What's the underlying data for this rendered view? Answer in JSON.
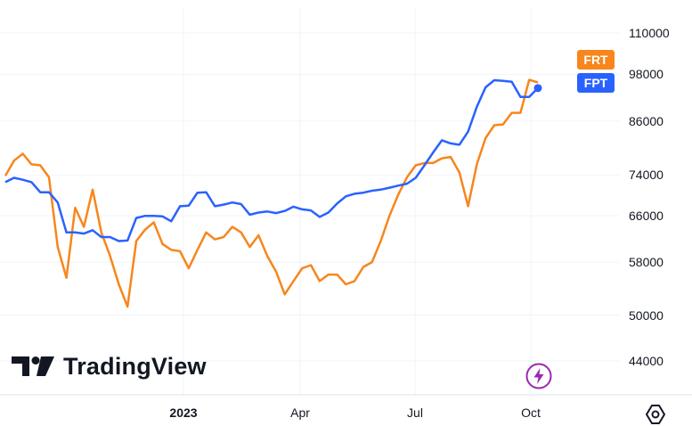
{
  "chart_data": {
    "type": "line",
    "y_ticks": [
      "110000",
      "98000",
      "86000",
      "74000",
      "66000",
      "58000",
      "50000",
      "44000"
    ],
    "x_ticks": [
      {
        "label": "2023",
        "bold": true
      },
      {
        "label": "Apr",
        "bold": false
      },
      {
        "label": "Jul",
        "bold": false
      },
      {
        "label": "Oct",
        "bold": false
      }
    ],
    "scale": "log",
    "ylim": [
      40000,
      110000
    ],
    "grid": true,
    "series": [
      {
        "name": "FRT",
        "color": "#F7861C",
        "values": [
          73800,
          77000,
          78500,
          76200,
          76000,
          73500,
          60500,
          55500,
          67500,
          64000,
          71000,
          63000,
          59000,
          54500,
          51200,
          61500,
          63500,
          64800,
          61000,
          60000,
          59800,
          57000,
          60000,
          63000,
          61800,
          62200,
          64000,
          63000,
          60500,
          62500,
          59000,
          56500,
          53000,
          55000,
          57000,
          57500,
          55000,
          56000,
          56000,
          54500,
          55000,
          57200,
          58000,
          61500,
          66000,
          70000,
          73500,
          76000,
          76500,
          76500,
          77500,
          77800,
          74500,
          67800,
          76200,
          82000,
          85000,
          85200,
          88000,
          88000,
          96500,
          95800
        ]
      },
      {
        "name": "FPT",
        "color": "#2962FF",
        "values": [
          72500,
          73400,
          73000,
          72500,
          70500,
          70500,
          68500,
          63000,
          63000,
          62800,
          63400,
          62200,
          62200,
          61500,
          61600,
          65600,
          66000,
          66000,
          65900,
          65000,
          67800,
          67900,
          70400,
          70500,
          67800,
          68100,
          68500,
          68200,
          66200,
          66600,
          66800,
          66500,
          66900,
          67700,
          67200,
          67000,
          65800,
          66600,
          68300,
          69700,
          70200,
          70400,
          70800,
          71000,
          71400,
          71800,
          72200,
          73400,
          76000,
          78800,
          81500,
          80800,
          80500,
          83500,
          89500,
          94500,
          96400,
          96200,
          96000,
          92000,
          92000,
          94300
        ]
      }
    ]
  },
  "brand": {
    "name": "TradingView"
  }
}
